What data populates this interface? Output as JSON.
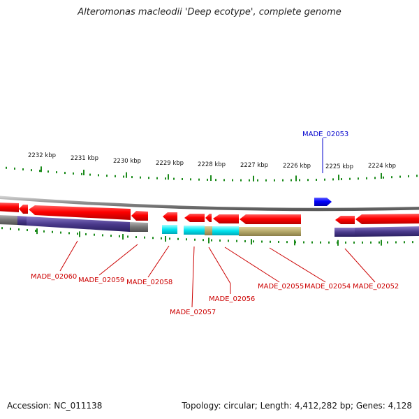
{
  "title": "Alteromonas macleodii 'Deep ecotype', complete genome",
  "footer": {
    "accession": "Accession: NC_011138",
    "summary": "Topology: circular; Length: 4,412,282 bp; Genes: 4,128"
  },
  "ticks": [
    {
      "label": "2232 kbp"
    },
    {
      "label": "2231 kbp"
    },
    {
      "label": "2230 kbp"
    },
    {
      "label": "2229 kbp"
    },
    {
      "label": "2228 kbp"
    },
    {
      "label": "2227 kbp"
    },
    {
      "label": "2226 kbp"
    },
    {
      "label": "2225 kbp"
    },
    {
      "label": "2224 kbp"
    }
  ],
  "genes": [
    {
      "label": "MADE_02060"
    },
    {
      "label": "MADE_02059"
    },
    {
      "label": "MADE_02058"
    },
    {
      "label": "MADE_02057"
    },
    {
      "label": "MADE_02056"
    },
    {
      "label": "MADE_02055"
    },
    {
      "label": "MADE_02054"
    },
    {
      "label": "MADE_02052"
    },
    {
      "label": "MADE_02053"
    }
  ],
  "colors": {
    "gene_red": "#ff0000",
    "gene_blue": "#0000ff",
    "backbone": "#888888",
    "cog_purple": "#4a3a8c",
    "cog_cyan": "#00e5f0",
    "cog_khaki": "#b5a86a",
    "cog_gray": "#777777",
    "tick_green": "#1a8a1a",
    "label_red": "#cc0000",
    "label_blue": "#0000cc"
  }
}
